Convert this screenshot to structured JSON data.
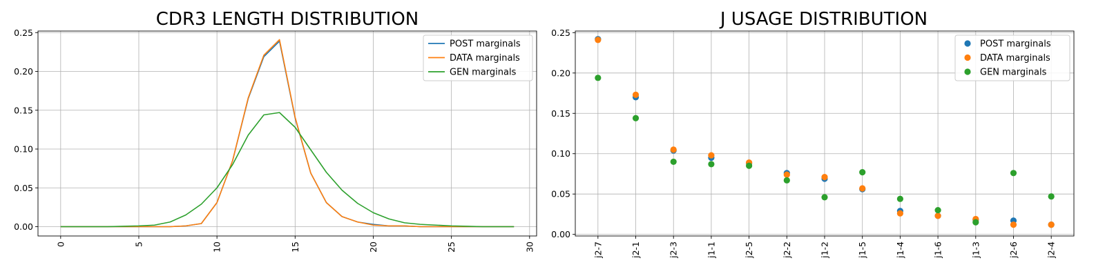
{
  "chart_data": [
    {
      "type": "line",
      "title": "CDR3 LENGTH DISTRIBUTION",
      "xlabel": "",
      "ylabel": "",
      "xlim": [
        -1.45,
        30.45
      ],
      "ylim": [
        -0.012,
        0.252
      ],
      "x_ticks": [
        0,
        5,
        10,
        15,
        20,
        25,
        30
      ],
      "y_ticks": [
        0.0,
        0.05,
        0.1,
        0.15,
        0.2,
        0.25
      ],
      "y_tick_labels": [
        "0.00",
        "0.05",
        "0.10",
        "0.15",
        "0.20",
        "0.25"
      ],
      "x_tick_rotation": 90,
      "grid": true,
      "legend_position": "top-right",
      "x": [
        0,
        1,
        2,
        3,
        4,
        5,
        6,
        7,
        8,
        9,
        10,
        11,
        12,
        13,
        14,
        15,
        16,
        17,
        18,
        19,
        20,
        21,
        22,
        23,
        24,
        25,
        26,
        27,
        28,
        29
      ],
      "series": [
        {
          "name": "POST marginals",
          "color": "#1f77b4",
          "values": [
            0,
            0,
            0,
            0,
            0,
            0,
            0,
            0,
            0.001,
            0.004,
            0.031,
            0.085,
            0.165,
            0.219,
            0.239,
            0.14,
            0.069,
            0.031,
            0.013,
            0.006,
            0.003,
            0.001,
            0.001,
            0,
            0,
            0,
            0,
            0,
            0,
            0
          ]
        },
        {
          "name": "DATA marginals",
          "color": "#ff7f0e",
          "values": [
            0,
            0,
            0,
            0,
            0,
            0,
            0,
            0,
            0.001,
            0.004,
            0.031,
            0.085,
            0.166,
            0.221,
            0.241,
            0.141,
            0.069,
            0.031,
            0.013,
            0.006,
            0.002,
            0.001,
            0.001,
            0,
            0,
            0,
            0,
            0,
            0,
            0
          ]
        },
        {
          "name": "GEN marginals",
          "color": "#2ca02c",
          "values": [
            0,
            0,
            0,
            0,
            0.0005,
            0.001,
            0.002,
            0.006,
            0.015,
            0.029,
            0.05,
            0.08,
            0.118,
            0.144,
            0.147,
            0.128,
            0.099,
            0.07,
            0.047,
            0.03,
            0.018,
            0.01,
            0.005,
            0.003,
            0.002,
            0.001,
            0.0005,
            0,
            0,
            0
          ]
        }
      ]
    },
    {
      "type": "scatter",
      "title": "J USAGE DISTRIBUTION",
      "xlabel": "",
      "ylabel": "",
      "ylim": [
        -0.002,
        0.252
      ],
      "y_ticks": [
        0.0,
        0.05,
        0.1,
        0.15,
        0.2,
        0.25
      ],
      "y_tick_labels": [
        "0.00",
        "0.05",
        "0.10",
        "0.15",
        "0.20",
        "0.25"
      ],
      "x_tick_rotation": 90,
      "grid": true,
      "legend_position": "top-right",
      "categories": [
        "j2-7",
        "j2-1",
        "j2-3",
        "j1-1",
        "j2-5",
        "j2-2",
        "j1-2",
        "j1-5",
        "j1-4",
        "j1-6",
        "j1-3",
        "j2-6",
        "j2-4"
      ],
      "series": [
        {
          "name": "POST marginals",
          "color": "#1f77b4",
          "values": [
            0.242,
            0.17,
            0.104,
            0.095,
            0.088,
            0.076,
            0.069,
            0.056,
            0.029,
            0.023,
            0.018,
            0.017,
            0.012
          ]
        },
        {
          "name": "DATA marginals",
          "color": "#ff7f0e",
          "values": [
            0.241,
            0.173,
            0.105,
            0.098,
            0.089,
            0.074,
            0.071,
            0.057,
            0.026,
            0.023,
            0.019,
            0.012,
            0.012
          ]
        },
        {
          "name": "GEN marginals",
          "color": "#2ca02c",
          "values": [
            0.194,
            0.144,
            0.09,
            0.087,
            0.085,
            0.067,
            0.046,
            0.077,
            0.044,
            0.03,
            0.015,
            0.076,
            0.047
          ]
        }
      ]
    }
  ]
}
